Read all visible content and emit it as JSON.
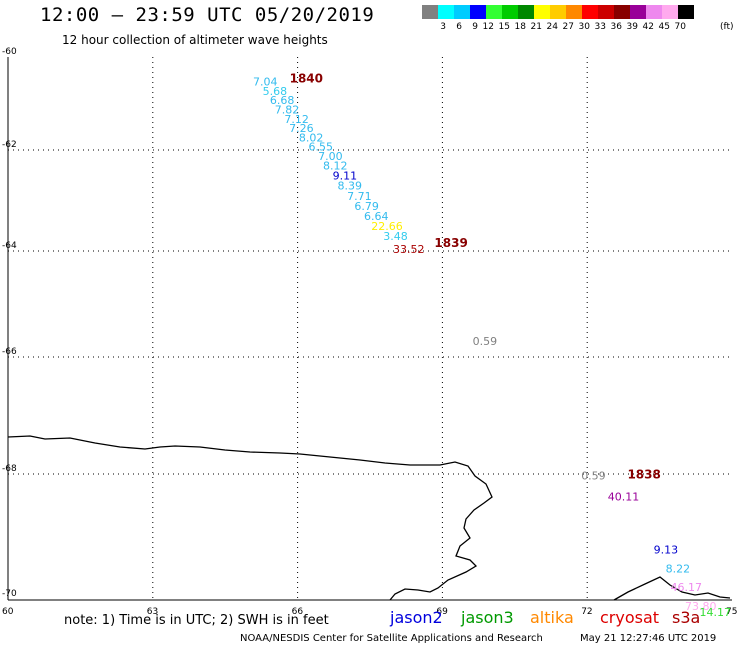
{
  "header": {
    "title": "12:00 – 23:59 UTC 05/20/2019",
    "subtitle": "12 hour collection of altimeter wave heights"
  },
  "color_scale": {
    "labels": [
      "3",
      "6",
      "9",
      "12",
      "15",
      "18",
      "21",
      "24",
      "27",
      "30",
      "33",
      "36",
      "39",
      "42",
      "45",
      "70"
    ],
    "unit": "(ft)",
    "colors": [
      "#808080",
      "#00ffff",
      "#00ccff",
      "#0000ff",
      "#33ff33",
      "#00cc00",
      "#008800",
      "#ffff00",
      "#ffcc00",
      "#ff8800",
      "#ff0000",
      "#cc0000",
      "#880000",
      "#990099",
      "#ee88ee",
      "#ffaaee",
      "#000000"
    ]
  },
  "axes": {
    "x_ticks": [
      "60",
      "63",
      "66",
      "69",
      "72",
      "75"
    ],
    "y_ticks": [
      "-60",
      "-62",
      "-64",
      "-66",
      "-68",
      "-70"
    ]
  },
  "passes": [
    {
      "label": "1840",
      "color": "#880000",
      "lon": 66.0,
      "lat": -60.2
    },
    {
      "label": "1839",
      "color": "#880000",
      "lon": 69.0,
      "lat": -63.6
    },
    {
      "label": "1838",
      "color": "#880000",
      "lon": 73.0,
      "lat": -67.8
    }
  ],
  "observations": [
    {
      "value": "7.04",
      "color": "#33bbee",
      "lon": 65.2,
      "lat": -60.25
    },
    {
      "value": "5.68",
      "color": "#33ccee",
      "lon": 65.4,
      "lat": -60.45
    },
    {
      "value": "6.68",
      "color": "#33bbee",
      "lon": 65.55,
      "lat": -60.65
    },
    {
      "value": "7.82",
      "color": "#33bbee",
      "lon": 65.65,
      "lat": -60.85
    },
    {
      "value": "7.12",
      "color": "#33bbee",
      "lon": 65.85,
      "lat": -61.05
    },
    {
      "value": "7.26",
      "color": "#33bbee",
      "lon": 65.95,
      "lat": -61.25
    },
    {
      "value": "8.02",
      "color": "#33bbee",
      "lon": 66.15,
      "lat": -61.45
    },
    {
      "value": "6.55",
      "color": "#33bbee",
      "lon": 66.35,
      "lat": -61.65
    },
    {
      "value": "7.00",
      "color": "#33bbee",
      "lon": 66.55,
      "lat": -61.85
    },
    {
      "value": "8.12",
      "color": "#33bbee",
      "lon": 66.65,
      "lat": -62.05
    },
    {
      "value": "9.11",
      "color": "#0000cc",
      "lon": 66.85,
      "lat": -62.25
    },
    {
      "value": "8.39",
      "color": "#33bbee",
      "lon": 66.95,
      "lat": -62.45
    },
    {
      "value": "7.71",
      "color": "#33bbee",
      "lon": 67.15,
      "lat": -62.65
    },
    {
      "value": "6.79",
      "color": "#33bbee",
      "lon": 67.3,
      "lat": -62.85
    },
    {
      "value": "6.64",
      "color": "#33bbee",
      "lon": 67.5,
      "lat": -63.05
    },
    {
      "value": "22.66",
      "color": "#ffee00",
      "lon": 67.65,
      "lat": -63.25
    },
    {
      "value": "3.48",
      "color": "#33ccee",
      "lon": 67.9,
      "lat": -63.45
    },
    {
      "value": "33.52",
      "color": "#aa0000",
      "lon": 68.1,
      "lat": -63.7
    },
    {
      "value": "0.59",
      "color": "#808080",
      "lon": 69.75,
      "lat": -65.45
    },
    {
      "value": "0.59",
      "color": "#808080",
      "lon": 72.0,
      "lat": -67.8
    },
    {
      "value": "40.11",
      "color": "#990099",
      "lon": 72.55,
      "lat": -68.15
    },
    {
      "value": "9.13",
      "color": "#0000cc",
      "lon": 73.5,
      "lat": -69.0
    },
    {
      "value": "8.22",
      "color": "#33bbee",
      "lon": 73.75,
      "lat": -69.3
    },
    {
      "value": "46.17",
      "color": "#ee88ee",
      "lon": 73.85,
      "lat": -69.6
    },
    {
      "value": "73.80",
      "color": "#ffaaee",
      "lon": 74.15,
      "lat": -69.9
    },
    {
      "value": "14.17",
      "color": "#33dd33",
      "lon": 74.45,
      "lat": -70.15
    }
  ],
  "footer": {
    "note": "note: 1) Time is in UTC; 2) SWH is in feet",
    "legend": [
      {
        "name": "jason2",
        "color": "#0000dd"
      },
      {
        "name": "jason3",
        "color": "#009900"
      },
      {
        "name": "altika",
        "color": "#ff8800"
      },
      {
        "name": "cryosat",
        "color": "#dd0000"
      },
      {
        "name": "s3a",
        "color": "#aa0000"
      }
    ],
    "credit": "NOAA/NESDIS Center for Satellite Applications and Research",
    "timestamp": "May 21 12:27:46 UTC 2019"
  }
}
